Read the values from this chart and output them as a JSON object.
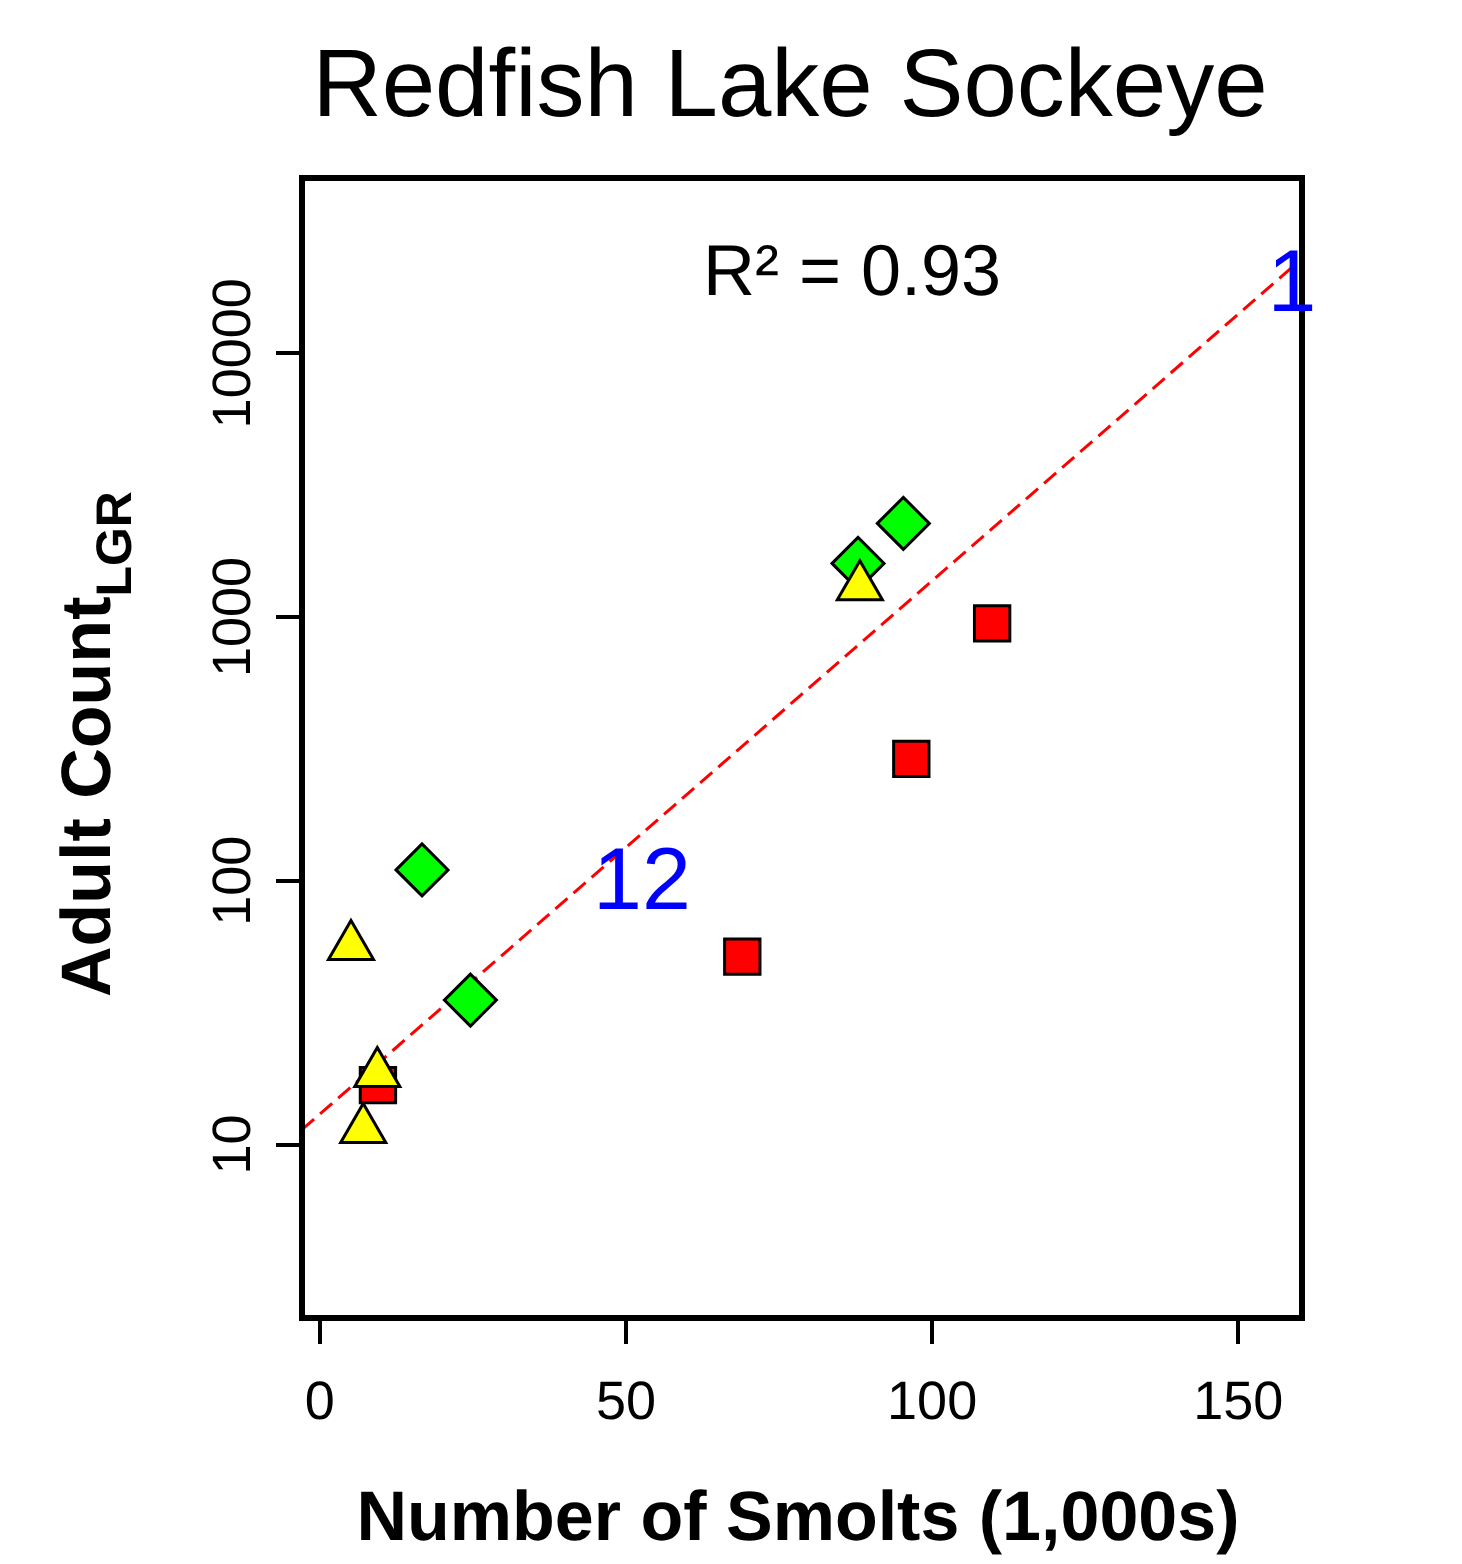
{
  "chart_data": {
    "type": "scatter",
    "title": "Redfish Lake Sockeye",
    "xlabel": "Number of Smolts (1,000s)",
    "ylabel": "Adult Count$_{LGR}$",
    "log": "y",
    "grid": false,
    "legend": false,
    "xlim": [
      -2.9,
      160.4
    ],
    "xticks": [
      0,
      50,
      100,
      150
    ],
    "ylim": [
      2.2,
      46200
    ],
    "yticks": [
      10,
      100,
      1000,
      10000
    ],
    "series": [
      {
        "type": "line",
        "color": "#ff0000",
        "line_style": "dashed",
        "marker": "none",
        "x": [
          -2.9,
          159.5
        ],
        "values": [
          11.4,
          21900
        ]
      },
      {
        "color": "#00ff00",
        "marker": "diamond",
        "x": [
          95.3,
          87.9,
          16.7,
          24.6
        ],
        "values": [
          2265,
          1597,
          110,
          35.3
        ]
      },
      {
        "color": "#ff0000",
        "marker": "square",
        "x": [
          109.8,
          96.6,
          69,
          9.5
        ],
        "values": [
          946,
          290,
          51.6,
          16.8
        ]
      },
      {
        "color": "#ffff00",
        "marker": "triangle",
        "x": [
          88.2,
          5.1,
          9.4,
          7.1
        ],
        "values": [
          1304,
          56.3,
          18.6,
          11.4
        ]
      }
    ],
    "annotations": [
      "R² = 0.93",
      "1",
      "12"
    ]
  }
}
